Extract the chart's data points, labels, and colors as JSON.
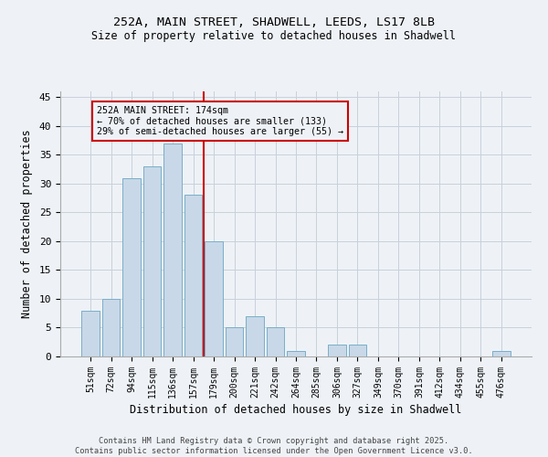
{
  "title1": "252A, MAIN STREET, SHADWELL, LEEDS, LS17 8LB",
  "title2": "Size of property relative to detached houses in Shadwell",
  "xlabel": "Distribution of detached houses by size in Shadwell",
  "ylabel": "Number of detached properties",
  "categories": [
    "51sqm",
    "72sqm",
    "94sqm",
    "115sqm",
    "136sqm",
    "157sqm",
    "179sqm",
    "200sqm",
    "221sqm",
    "242sqm",
    "264sqm",
    "285sqm",
    "306sqm",
    "327sqm",
    "349sqm",
    "370sqm",
    "391sqm",
    "412sqm",
    "434sqm",
    "455sqm",
    "476sqm"
  ],
  "values": [
    8,
    10,
    31,
    33,
    37,
    28,
    20,
    5,
    7,
    5,
    1,
    0,
    2,
    2,
    0,
    0,
    0,
    0,
    0,
    0,
    1
  ],
  "bar_color": "#c8d8e8",
  "bar_edge_color": "#7aaec8",
  "vline_x": 6,
  "vline_color": "#cc0000",
  "annotation_box_text": "252A MAIN STREET: 174sqm\n← 70% of detached houses are smaller (133)\n29% of semi-detached houses are larger (55) →",
  "box_edge_color": "#cc0000",
  "ylim": [
    0,
    46
  ],
  "yticks": [
    0,
    5,
    10,
    15,
    20,
    25,
    30,
    35,
    40,
    45
  ],
  "footnote": "Contains HM Land Registry data © Crown copyright and database right 2025.\nContains public sector information licensed under the Open Government Licence v3.0.",
  "background_color": "#eef2f7",
  "grid_color": "#c8d0da"
}
